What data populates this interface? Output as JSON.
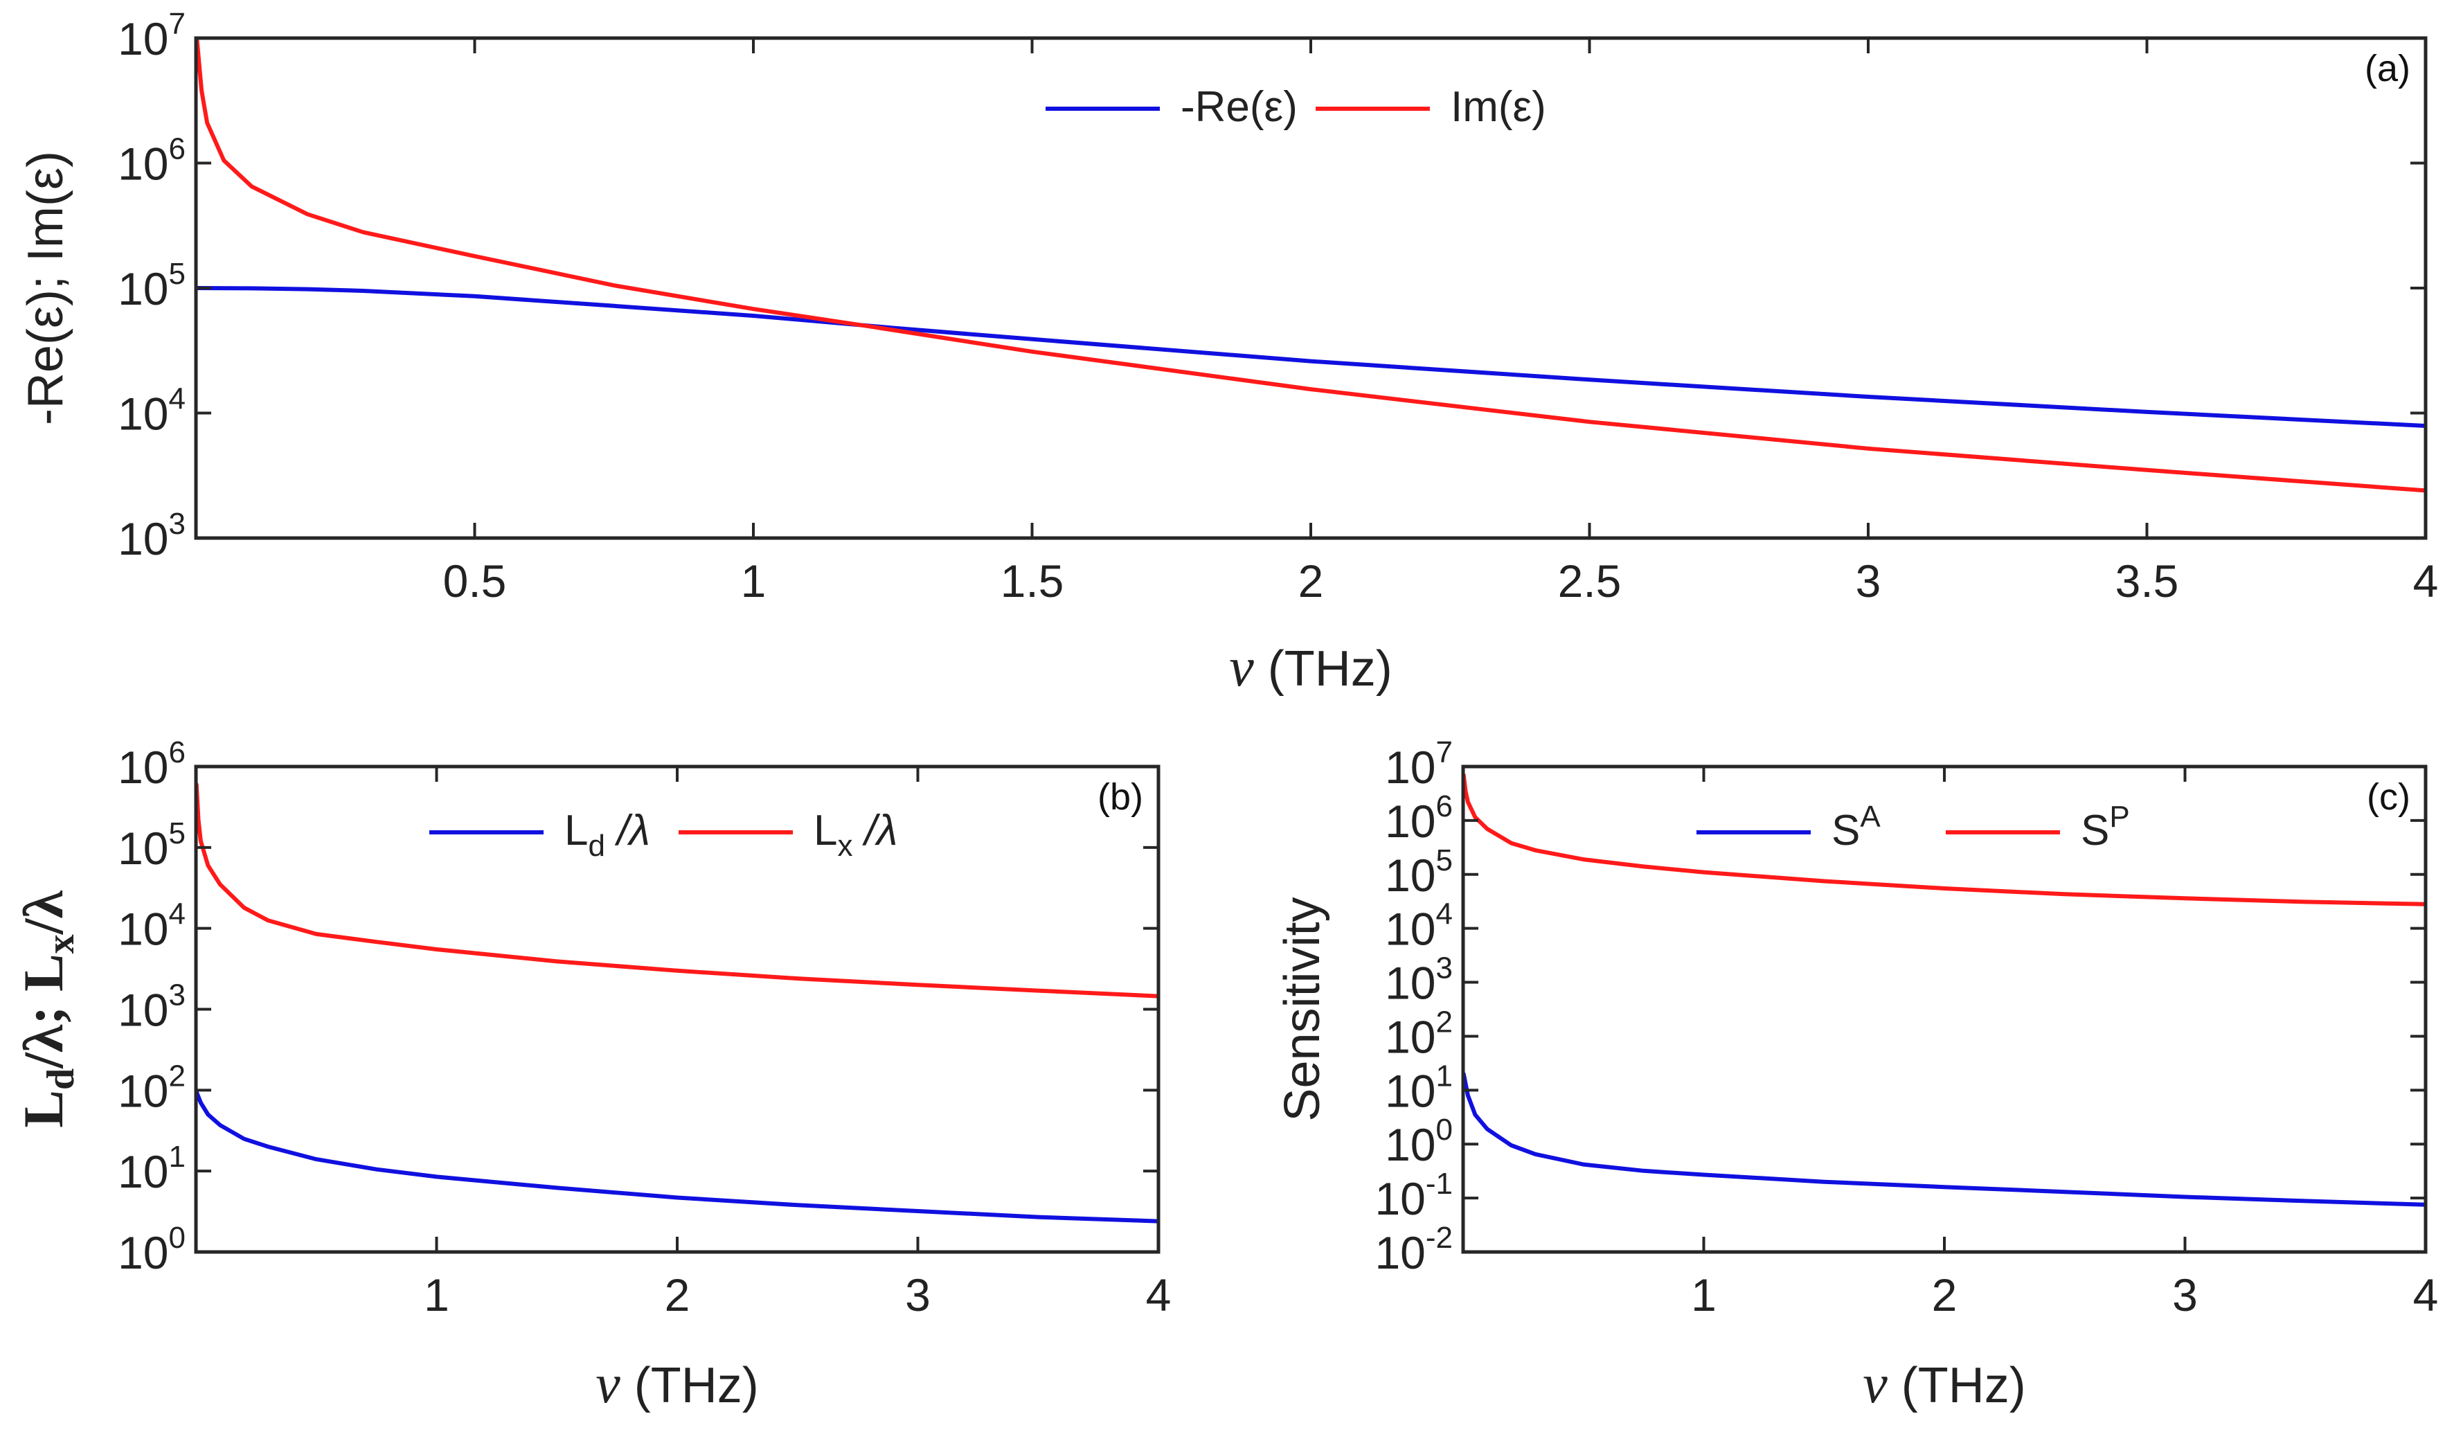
{
  "figure": {
    "colors": {
      "series_blue": "#1010e0",
      "series_red": "#ff1a1a",
      "axis": "#262626"
    }
  },
  "chart_data": [
    {
      "id": "a",
      "type": "line",
      "panel_label": "(a)",
      "xlabel_symbol": "ν",
      "xlabel_unit": " (THz)",
      "ylabel": "-Re(ε); Im(ε)",
      "xscale": "linear",
      "yscale": "log",
      "xlim": [
        0,
        4
      ],
      "ylim": [
        1000,
        10000000
      ],
      "xticks": [
        0.5,
        1,
        1.5,
        2,
        2.5,
        3,
        3.5,
        4
      ],
      "xtick_labels": [
        "0.5",
        "1",
        "1.5",
        "2",
        "2.5",
        "3",
        "3.5",
        "4"
      ],
      "yticks": [
        1000,
        10000,
        100000,
        1000000,
        10000000
      ],
      "ytick_labels": [
        {
          "base": "10",
          "exp": "3"
        },
        {
          "base": "10",
          "exp": "4"
        },
        {
          "base": "10",
          "exp": "5"
        },
        {
          "base": "10",
          "exp": "6"
        },
        {
          "base": "10",
          "exp": "7"
        }
      ],
      "legend_location": "top-center",
      "series": [
        {
          "name": "-Re(ε)",
          "color": "#1010e0",
          "x": [
            0.002,
            0.1,
            0.2,
            0.3,
            0.5,
            0.75,
            1.0,
            1.25,
            1.5,
            2.0,
            2.5,
            3.0,
            3.5,
            4.0
          ],
          "y": [
            100000,
            99500,
            98000,
            95000,
            86000,
            72000,
            60000,
            48000,
            39000,
            26000,
            18500,
            13500,
            10200,
            7900
          ]
        },
        {
          "name": "Im(ε)",
          "color": "#ff1a1a",
          "x": [
            0.002,
            0.01,
            0.02,
            0.05,
            0.1,
            0.2,
            0.3,
            0.5,
            0.75,
            1.0,
            1.2,
            1.5,
            2.0,
            2.5,
            3.0,
            3.5,
            4.0
          ],
          "y": [
            9500000,
            3800000,
            2100000,
            1050000,
            650000,
            390000,
            280000,
            180000,
            105000,
            68000,
            50000,
            31000,
            15500,
            8500,
            5200,
            3500,
            2400
          ]
        }
      ]
    },
    {
      "id": "b",
      "type": "line",
      "panel_label": "(b)",
      "xlabel_symbol": "ν",
      "xlabel_unit": " (THz)",
      "ylabel_parts": [
        "L",
        "d",
        "/λ; L",
        "x",
        "/λ"
      ],
      "xscale": "linear",
      "yscale": "log",
      "xlim": [
        0,
        4
      ],
      "ylim": [
        1,
        1000000
      ],
      "xticks": [
        1,
        2,
        3,
        4
      ],
      "xtick_labels": [
        "1",
        "2",
        "3",
        "4"
      ],
      "yticks": [
        1,
        10,
        100,
        1000,
        10000,
        100000,
        1000000
      ],
      "ytick_labels": [
        {
          "base": "10",
          "exp": "0"
        },
        {
          "base": "10",
          "exp": "1"
        },
        {
          "base": "10",
          "exp": "2"
        },
        {
          "base": "10",
          "exp": "3"
        },
        {
          "base": "10",
          "exp": "4"
        },
        {
          "base": "10",
          "exp": "5"
        },
        {
          "base": "10",
          "exp": "6"
        }
      ],
      "legend_location": "top-center",
      "legend_labels": [
        {
          "main": "L",
          "sub": "d",
          "tail": " /λ"
        },
        {
          "main": "L",
          "sub": "x",
          "tail": " /λ"
        }
      ],
      "series": [
        {
          "name": "Ld/λ",
          "color": "#1010e0",
          "x": [
            0.002,
            0.02,
            0.05,
            0.1,
            0.2,
            0.3,
            0.5,
            0.75,
            1.0,
            1.5,
            2.0,
            2.5,
            3.0,
            3.5,
            4.0
          ],
          "y": [
            95,
            70,
            50,
            37,
            25,
            20,
            14,
            10.5,
            8.5,
            6.2,
            4.7,
            3.8,
            3.2,
            2.7,
            2.4
          ]
        },
        {
          "name": "Lx/λ",
          "color": "#ff1a1a",
          "x": [
            0.002,
            0.01,
            0.02,
            0.05,
            0.1,
            0.2,
            0.3,
            0.5,
            0.75,
            1.0,
            1.5,
            2.0,
            2.5,
            3.0,
            3.5,
            4.0
          ],
          "y": [
            600000,
            220000,
            120000,
            60000,
            35000,
            18000,
            12500,
            8500,
            6800,
            5500,
            3900,
            3000,
            2400,
            2000,
            1700,
            1450
          ]
        }
      ]
    },
    {
      "id": "c",
      "type": "line",
      "panel_label": "(c)",
      "xlabel_symbol": "ν",
      "xlabel_unit": " (THz)",
      "ylabel": "Sensitivity",
      "xscale": "linear",
      "yscale": "log",
      "xlim": [
        0,
        4
      ],
      "ylim": [
        0.01,
        10000000
      ],
      "xticks": [
        1,
        2,
        3,
        4
      ],
      "xtick_labels": [
        "1",
        "2",
        "3",
        "4"
      ],
      "yticks": [
        0.01,
        0.1,
        1,
        10,
        100,
        1000,
        10000,
        100000,
        1000000,
        10000000
      ],
      "ytick_labels": [
        {
          "base": "10",
          "exp": "-2"
        },
        {
          "base": "10",
          "exp": "-1"
        },
        {
          "base": "10",
          "exp": "0"
        },
        {
          "base": "10",
          "exp": "1"
        },
        {
          "base": "10",
          "exp": "2"
        },
        {
          "base": "10",
          "exp": "3"
        },
        {
          "base": "10",
          "exp": "4"
        },
        {
          "base": "10",
          "exp": "5"
        },
        {
          "base": "10",
          "exp": "6"
        },
        {
          "base": "10",
          "exp": "7"
        }
      ],
      "legend_location": "top-center",
      "legend_labels": [
        {
          "main": "S",
          "sup": "A"
        },
        {
          "main": "S",
          "sup": "P"
        }
      ],
      "series": [
        {
          "name": "SA",
          "color": "#1010e0",
          "x": [
            0.002,
            0.02,
            0.05,
            0.1,
            0.2,
            0.3,
            0.5,
            0.75,
            1.0,
            1.5,
            2.0,
            2.5,
            3.0,
            3.5,
            4.0
          ],
          "y": [
            20,
            8,
            3.5,
            1.9,
            0.95,
            0.65,
            0.42,
            0.32,
            0.27,
            0.2,
            0.16,
            0.13,
            0.105,
            0.088,
            0.075
          ]
        },
        {
          "name": "SP",
          "color": "#ff1a1a",
          "x": [
            0.002,
            0.01,
            0.02,
            0.05,
            0.1,
            0.2,
            0.3,
            0.5,
            0.75,
            1.0,
            1.5,
            2.0,
            2.5,
            3.0,
            3.5,
            4.0
          ],
          "y": [
            7000000,
            3500000,
            2200000,
            1150000,
            700000,
            380000,
            280000,
            190000,
            140000,
            110000,
            75000,
            55000,
            43000,
            36000,
            31000,
            28000
          ]
        }
      ]
    }
  ]
}
